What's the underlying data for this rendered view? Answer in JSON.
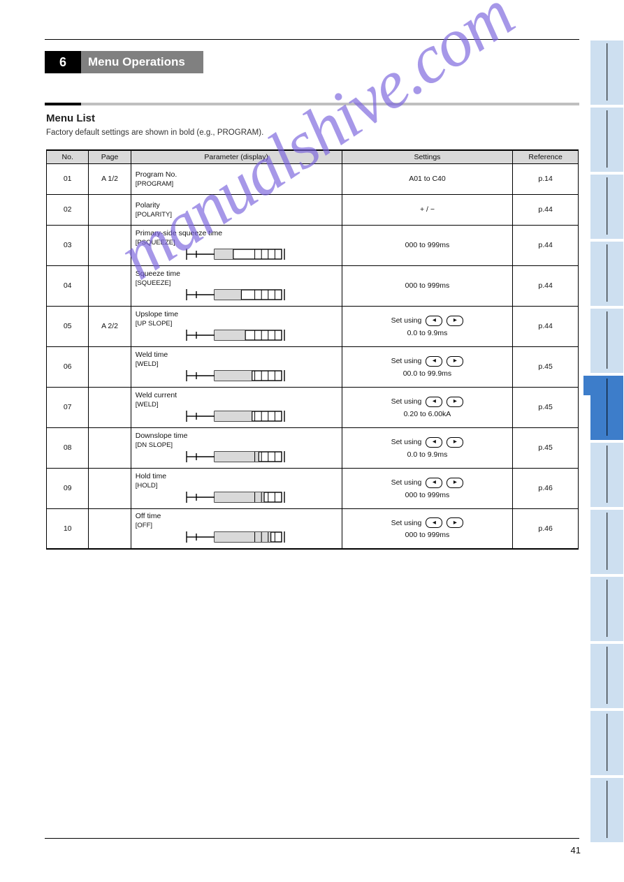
{
  "chapter": {
    "num": "6",
    "title": "Menu Operations"
  },
  "section": {
    "title": "Menu List",
    "sub": "Factory default settings are shown in bold (e.g., PROGRAM)."
  },
  "columns": [
    "No.",
    "Page",
    "Parameter (display)",
    "Settings",
    "Reference"
  ],
  "rows": [
    {
      "no": "01",
      "page": "A 1/2",
      "param": "Program No.",
      "param_disp": "PROGRAM",
      "setting_pre": "",
      "setting_label": "A01 to C40",
      "has_syr": false,
      "has_keys": false,
      "ref": "p.14"
    },
    {
      "no": "02",
      "page": "",
      "param": "Polarity",
      "param_disp": "POLARITY",
      "setting_pre": "",
      "setting_label": "+ / −",
      "has_syr": false,
      "has_keys": false,
      "ref": "p.44"
    },
    {
      "no": "03",
      "page": "",
      "param": "Primary-side squeeze time",
      "param_disp": "PSQUEEZE",
      "setting_pre": "",
      "setting_label": "000 to 999ms",
      "has_syr": true,
      "syr_fill": 0.28,
      "has_keys": false,
      "ref": "p.44"
    },
    {
      "no": "04",
      "page": "",
      "param": "Squeeze time",
      "param_disp": "SQUEEZE",
      "setting_pre": "",
      "setting_label": "000 to 999ms",
      "has_syr": true,
      "syr_fill": 0.4,
      "has_keys": false,
      "ref": "p.44"
    },
    {
      "no": "05",
      "page": "A 2/2",
      "param": "Upslope time",
      "param_disp": "UP SLOPE",
      "setting_pre": "Set using",
      "setting_label": "0.0 to 9.9ms",
      "has_syr": true,
      "syr_fill": 0.46,
      "has_keys": true,
      "ref": "p.44"
    },
    {
      "no": "06",
      "page": "",
      "param": "Weld time",
      "param_disp": "WELD",
      "setting_pre": "Set using",
      "setting_label": "00.0 to 99.9ms",
      "has_syr": true,
      "syr_fill": 0.56,
      "has_keys": true,
      "ref": "p.45"
    },
    {
      "no": "07",
      "page": "",
      "param": "Weld current",
      "param_disp": "WELD",
      "setting_pre": "Set using",
      "setting_label": "0.20 to 6.00kA",
      "has_syr": true,
      "syr_fill": 0.56,
      "has_keys": true,
      "ref": "p.45"
    },
    {
      "no": "08",
      "page": "",
      "param": "Downslope time",
      "param_disp": "DN SLOPE",
      "setting_pre": "Set using",
      "setting_label": "0.0 to 9.9ms",
      "has_syr": true,
      "syr_fill": 0.66,
      "has_keys": true,
      "ref": "p.45"
    },
    {
      "no": "09",
      "page": "",
      "param": "Hold time",
      "param_disp": "HOLD",
      "setting_pre": "Set using",
      "setting_label": "000 to 999ms",
      "has_syr": true,
      "syr_fill": 0.74,
      "has_keys": true,
      "ref": "p.46"
    },
    {
      "no": "10",
      "page": "",
      "param": "Off time",
      "param_disp": "OFF",
      "setting_pre": "Set using",
      "setting_label": "000 to 999ms",
      "has_syr": true,
      "syr_fill": 0.84,
      "has_keys": true,
      "ref": "p.46"
    }
  ],
  "tabs_active_index": 5,
  "page_num": "41",
  "watermark": "manualshive.com"
}
